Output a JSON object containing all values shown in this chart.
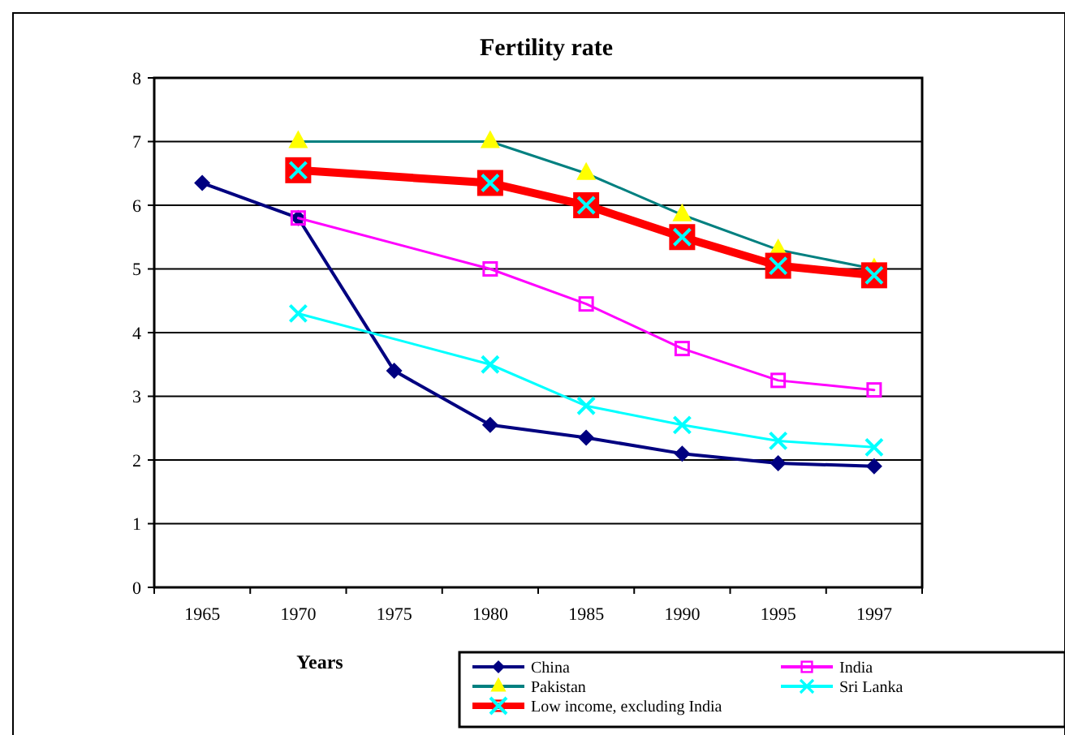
{
  "chart_data": {
    "type": "line",
    "title": "Fertility rate",
    "xlabel": "Years",
    "categories": [
      "1965",
      "1970",
      "1975",
      "1980",
      "1985",
      "1990",
      "1995",
      "1997"
    ],
    "ylim": [
      0,
      8
    ],
    "yticks": [
      0,
      1,
      2,
      3,
      4,
      5,
      6,
      7,
      8
    ],
    "grid": "y",
    "legend": "bottom right",
    "series": [
      {
        "name": "China",
        "color": "#000080",
        "marker": "diamond",
        "values": [
          6.35,
          5.8,
          3.4,
          2.55,
          2.35,
          2.1,
          1.95,
          1.9
        ]
      },
      {
        "name": "India",
        "color": "#ff00ff",
        "marker": "square",
        "values": [
          null,
          5.8,
          null,
          5.0,
          4.45,
          3.75,
          3.25,
          3.1
        ]
      },
      {
        "name": "Pakistan",
        "color": "#008080",
        "marker": "triangle",
        "values": [
          null,
          7.0,
          null,
          7.0,
          6.5,
          5.85,
          5.3,
          5.0
        ]
      },
      {
        "name": "Sri Lanka",
        "color": "#00ffff",
        "marker": "cross",
        "values": [
          null,
          4.3,
          null,
          3.5,
          2.85,
          2.55,
          2.3,
          2.2
        ]
      },
      {
        "name": "Low income, excluding India",
        "color": "#ff0000",
        "marker": "square",
        "values": [
          null,
          6.55,
          null,
          6.35,
          6.0,
          5.5,
          5.05,
          4.9
        ]
      }
    ]
  }
}
